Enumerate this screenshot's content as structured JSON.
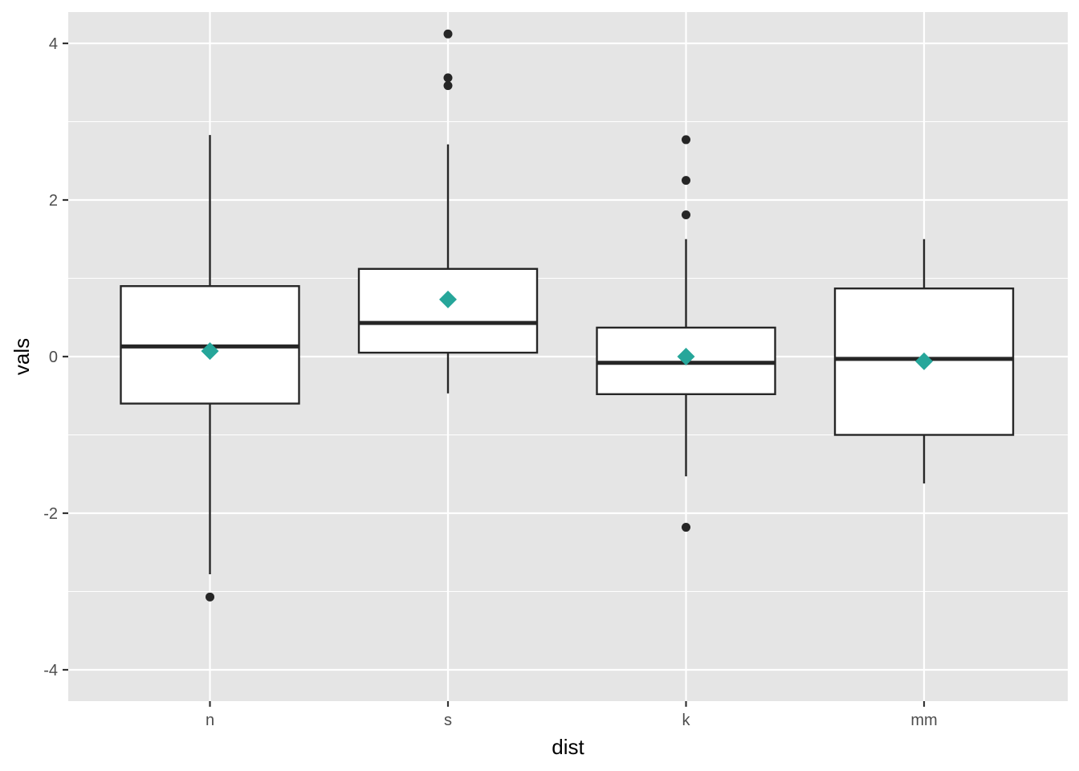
{
  "chart_data": {
    "type": "boxplot",
    "xlabel": "dist",
    "ylabel": "vals",
    "categories": [
      "n",
      "s",
      "k",
      "mm"
    ],
    "ylim": [
      -4.4,
      4.4
    ],
    "yticks": [
      -4,
      -2,
      0,
      2,
      4
    ],
    "ytick_labels": [
      "-4",
      "-2",
      "0",
      "2",
      "4"
    ],
    "grid": true,
    "legend": "none",
    "colors": {
      "panel": "#e5e5e5",
      "grid": "#ffffff",
      "box_fill": "#ffffff",
      "box_stroke": "#262626",
      "outlier": "#262626",
      "mean_marker": "#26a69a",
      "tick_text": "#4d4d4d"
    },
    "boxes": [
      {
        "category": "n",
        "whisker_low": -2.78,
        "q1": -0.6,
        "median": 0.13,
        "q3": 0.9,
        "whisker_high": 2.83,
        "mean": 0.07,
        "outliers": [
          -3.07
        ]
      },
      {
        "category": "s",
        "whisker_low": -0.47,
        "q1": 0.05,
        "median": 0.43,
        "q3": 1.12,
        "whisker_high": 2.71,
        "mean": 0.73,
        "outliers": [
          4.12,
          3.56,
          3.46
        ]
      },
      {
        "category": "k",
        "whisker_low": -1.53,
        "q1": -0.48,
        "median": -0.08,
        "q3": 0.37,
        "whisker_high": 1.5,
        "mean": 0.0,
        "outliers": [
          2.77,
          2.25,
          1.81,
          -2.18
        ]
      },
      {
        "category": "mm",
        "whisker_low": -1.62,
        "q1": -1.0,
        "median": -0.03,
        "q3": 0.87,
        "whisker_high": 1.5,
        "mean": -0.06,
        "outliers": []
      }
    ]
  }
}
